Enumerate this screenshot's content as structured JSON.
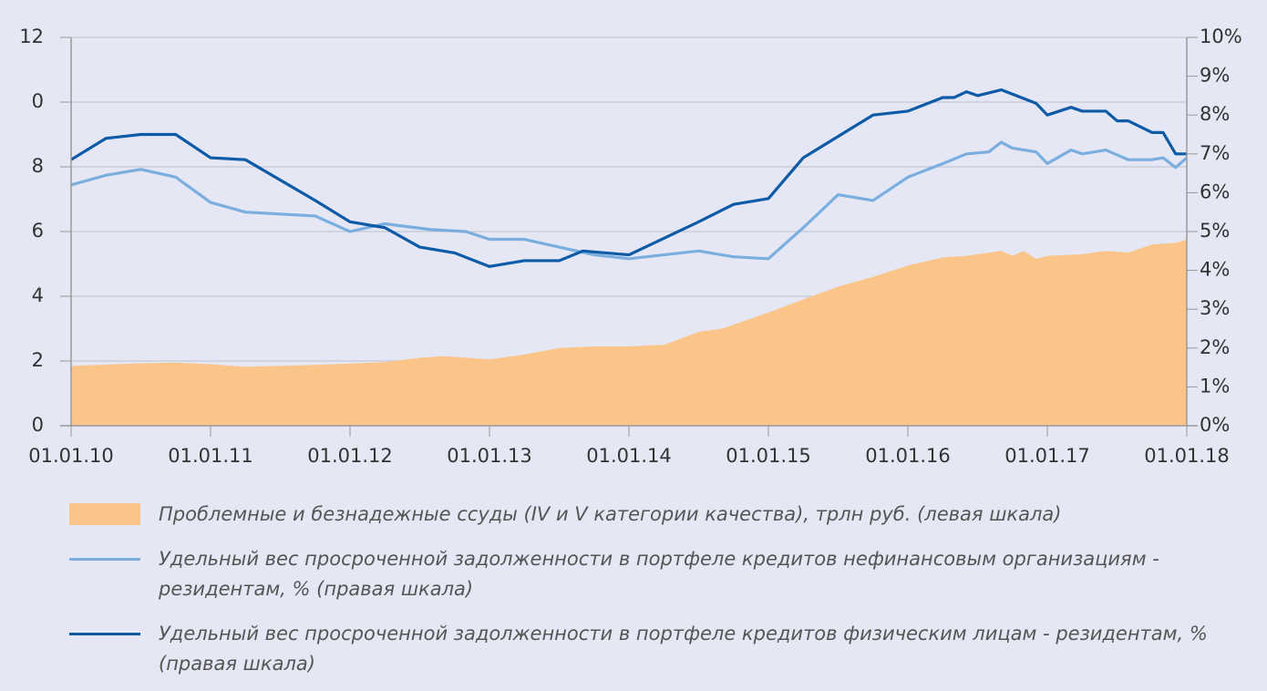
{
  "chart_data": {
    "type": "line",
    "xlim": [
      2010,
      2018
    ],
    "xticks": [
      {
        "value": 2010,
        "label": "01.01.10"
      },
      {
        "value": 2011,
        "label": "01.01.11"
      },
      {
        "value": 2012,
        "label": "01.01.12"
      },
      {
        "value": 2013,
        "label": "01.01.13"
      },
      {
        "value": 2014,
        "label": "01.01.14"
      },
      {
        "value": 2015,
        "label": "01.01.15"
      },
      {
        "value": 2016,
        "label": "01.01.16"
      },
      {
        "value": 2017,
        "label": "01.01.17"
      },
      {
        "value": 2018,
        "label": "01.01.18"
      }
    ],
    "ylim": [
      0,
      12
    ],
    "yticks": [
      0,
      2,
      4,
      6,
      8,
      {
        "value": 10,
        "label": "0"
      },
      12
    ],
    "y2lim": [
      0,
      10
    ],
    "y2ticks": [
      {
        "value": 0,
        "label": "0%"
      },
      {
        "value": 1,
        "label": "1%"
      },
      {
        "value": 2,
        "label": "2%"
      },
      {
        "value": 3,
        "label": "3%"
      },
      {
        "value": 4,
        "label": "4%"
      },
      {
        "value": 5,
        "label": "5%"
      },
      {
        "value": 6,
        "label": "6%"
      },
      {
        "value": 7,
        "label": "7%"
      },
      {
        "value": 8,
        "label": "8%"
      },
      {
        "value": 9,
        "label": "9%"
      },
      {
        "value": 10,
        "label": "10%"
      }
    ],
    "grid": true,
    "series": [
      {
        "name": "Проблемные и безнадежные ссуды (IV и V категории качества), трлн руб. (левая шкала)",
        "type": "area",
        "color": "#fbc58a",
        "x": [
          2010.0,
          2010.5,
          2010.75,
          2011.0,
          2011.25,
          2011.75,
          2012.0,
          2012.25,
          2012.5,
          2012.67,
          2013.0,
          2013.25,
          2013.5,
          2013.75,
          2014.0,
          2014.25,
          2014.5,
          2014.67,
          2015.0,
          2015.25,
          2015.5,
          2015.75,
          2016.0,
          2016.25,
          2016.42,
          2016.67,
          2016.75,
          2016.83,
          2016.92,
          2017.0,
          2017.25,
          2017.42,
          2017.58,
          2017.75,
          2017.92,
          2018.0
        ],
        "values": [
          1.85,
          1.93,
          1.95,
          1.9,
          1.82,
          1.88,
          1.92,
          1.97,
          2.1,
          2.15,
          2.05,
          2.2,
          2.4,
          2.45,
          2.45,
          2.5,
          2.9,
          3.0,
          3.5,
          3.9,
          4.3,
          4.6,
          4.95,
          5.2,
          5.25,
          5.4,
          5.25,
          5.4,
          5.15,
          5.25,
          5.3,
          5.4,
          5.35,
          5.6,
          5.65,
          5.75
        ]
      },
      {
        "name": "Удельный вес просроченной задолженности в портфеле кредитов нефинансовым организациям - резидентам, % (правая шкала)",
        "color": "#7aaedf",
        "axis": "y2",
        "x": [
          2010.0,
          2010.25,
          2010.5,
          2010.75,
          2011.0,
          2011.25,
          2011.75,
          2012.0,
          2012.25,
          2012.58,
          2012.83,
          2013.0,
          2013.25,
          2013.5,
          2013.75,
          2014.0,
          2014.5,
          2014.75,
          2015.0,
          2015.25,
          2015.5,
          2015.75,
          2016.0,
          2016.25,
          2016.42,
          2016.58,
          2016.67,
          2016.75,
          2016.92,
          2017.0,
          2017.17,
          2017.25,
          2017.42,
          2017.58,
          2017.75,
          2017.83,
          2017.92,
          2018.0
        ],
        "values": [
          6.2,
          6.45,
          6.6,
          6.4,
          5.75,
          5.5,
          5.4,
          5.0,
          5.2,
          5.05,
          5.0,
          4.8,
          4.8,
          4.6,
          4.4,
          4.3,
          4.5,
          4.35,
          4.3,
          5.1,
          5.95,
          5.8,
          6.4,
          6.75,
          7.0,
          7.05,
          7.3,
          7.15,
          7.05,
          6.75,
          7.1,
          7.0,
          7.1,
          6.85,
          6.85,
          6.9,
          6.65,
          6.9
        ]
      },
      {
        "name": "Удельный вес просроченной задолженности в портфеле кредитов физическим лицам - резидентам, % (правая шкала)",
        "color": "#0d5aa7",
        "axis": "y2",
        "x": [
          2010.0,
          2010.25,
          2010.5,
          2010.75,
          2011.0,
          2011.25,
          2011.75,
          2012.0,
          2012.25,
          2012.5,
          2012.75,
          2013.0,
          2013.25,
          2013.5,
          2013.67,
          2014.0,
          2014.5,
          2014.75,
          2015.0,
          2015.25,
          2015.5,
          2015.75,
          2016.0,
          2016.25,
          2016.33,
          2016.42,
          2016.5,
          2016.67,
          2016.92,
          2017.0,
          2017.17,
          2017.25,
          2017.42,
          2017.5,
          2017.58,
          2017.75,
          2017.83,
          2017.92,
          2018.0
        ],
        "values": [
          6.85,
          7.4,
          7.5,
          7.5,
          6.9,
          6.85,
          5.8,
          5.25,
          5.1,
          4.6,
          4.45,
          4.1,
          4.25,
          4.25,
          4.5,
          4.4,
          5.25,
          5.7,
          5.85,
          6.9,
          7.45,
          8.0,
          8.1,
          8.45,
          8.45,
          8.6,
          8.5,
          8.65,
          8.3,
          8.0,
          8.2,
          8.1,
          8.1,
          7.85,
          7.85,
          7.55,
          7.55,
          7.0,
          7.0
        ]
      }
    ]
  }
}
